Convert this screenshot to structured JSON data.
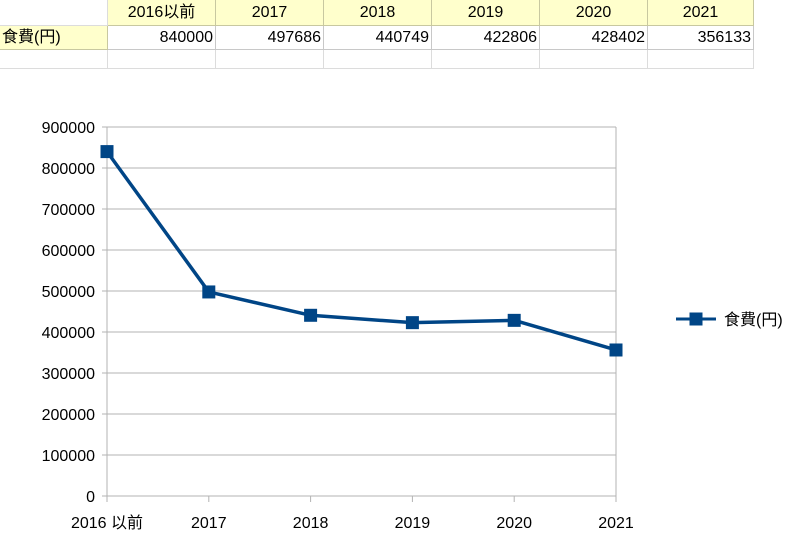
{
  "table": {
    "headers": [
      "2016以前",
      "2017",
      "2018",
      "2019",
      "2020",
      "2021"
    ],
    "row_label": "食費(円)",
    "values": [
      "840000",
      "497686",
      "440749",
      "422806",
      "428402",
      "356133"
    ]
  },
  "chart_data": {
    "type": "line",
    "categories": [
      "2016 以前",
      "2017",
      "2018",
      "2019",
      "2020",
      "2021"
    ],
    "series": [
      {
        "name": "食費(円)",
        "values": [
          840000,
          497686,
          440749,
          422806,
          428402,
          356133
        ],
        "color": "#004586"
      }
    ],
    "ylim": [
      0,
      900000
    ],
    "yticks": [
      "0",
      "100000",
      "200000",
      "300000",
      "400000",
      "500000",
      "600000",
      "700000",
      "800000",
      "900000"
    ],
    "grid": true,
    "legend": "right",
    "marker": "square"
  }
}
